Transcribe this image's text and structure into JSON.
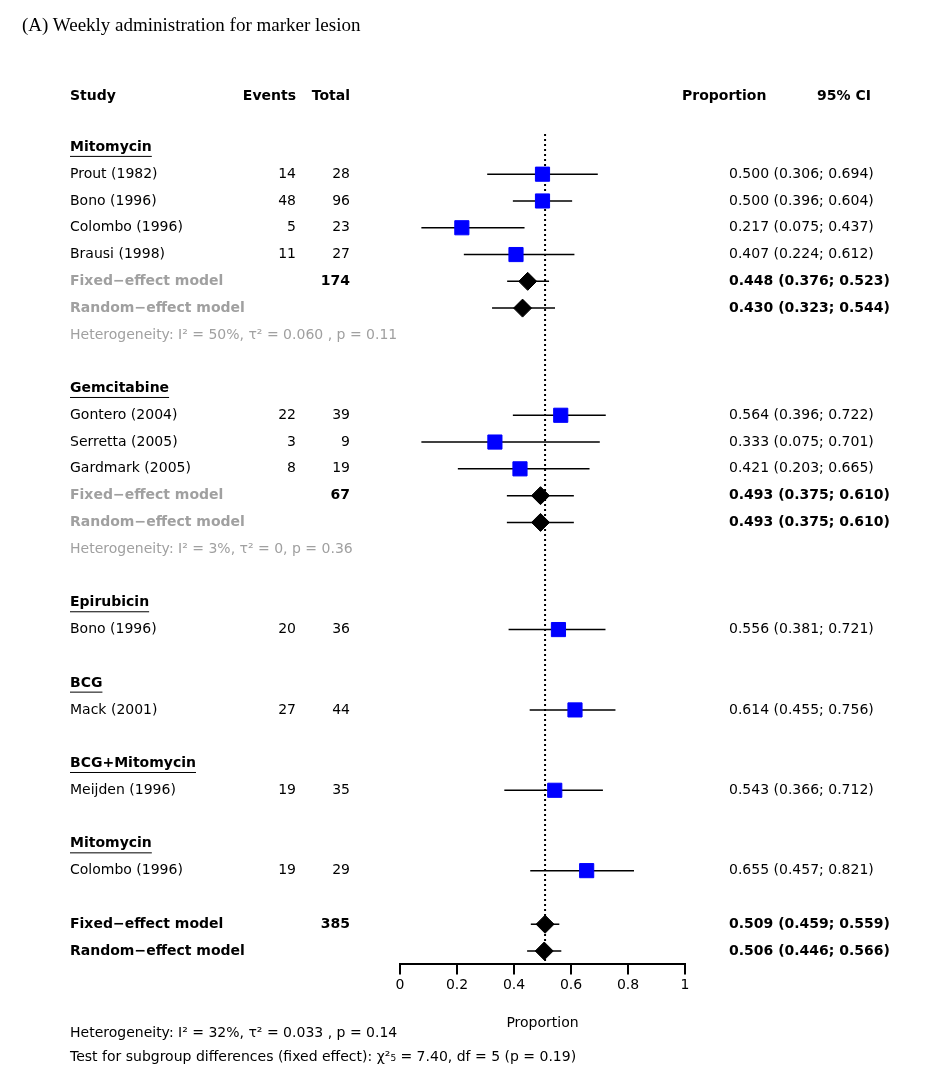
{
  "chart_data": {
    "type": "scatter",
    "orientation": "horizontal",
    "title": "(A) Weekly administration for marker lesion",
    "xlabel": "Proportion",
    "categories": [
      "Mitomycin",
      "Prout (1982)",
      "Bono (1996)",
      "Colombo (1996)",
      "Brausi (1998)",
      "Fixed−effect model",
      "Random−effect model",
      "Heterogeneity: I² = 50%, τ² = 0.060 , p = 0.11",
      null,
      "Gemcitabine",
      "Gontero (2004)",
      "Serretta (2005)",
      "Gardmark (2005)",
      "Fixed−effect model",
      "Random−effect model",
      "Heterogeneity: I² = 3%, τ² = 0, p = 0.36",
      null,
      "Epirubicin",
      "Bono (1996)",
      null,
      "BCG",
      "Mack (2001)",
      null,
      "BCG+Mitomycin",
      "Meijden (1996)",
      null,
      "Mitomycin",
      "Colombo (1996)",
      null,
      "Fixed−effect model",
      "Random−effect model"
    ],
    "series": [
      {
        "color": "#0000ff",
        "marker": "square",
        "values": [
          null,
          0.5,
          0.5,
          0.217,
          0.407,
          null,
          null,
          null,
          null,
          null,
          0.564,
          0.333,
          0.421,
          null,
          null,
          null,
          null,
          null,
          0.556,
          null,
          null,
          0.614,
          null,
          null,
          0.543,
          null,
          null,
          0.655,
          null,
          null,
          null
        ],
        "errors": [
          null,
          [
            0.306,
            0.694
          ],
          [
            0.396,
            0.604
          ],
          [
            0.075,
            0.437
          ],
          [
            0.224,
            0.612
          ],
          null,
          null,
          null,
          null,
          null,
          [
            0.396,
            0.722
          ],
          [
            0.075,
            0.701
          ],
          [
            0.203,
            0.665
          ],
          null,
          null,
          null,
          null,
          null,
          [
            0.381,
            0.721
          ],
          null,
          null,
          [
            0.455,
            0.756
          ],
          null,
          null,
          [
            0.366,
            0.712
          ],
          null,
          null,
          [
            0.457,
            0.821
          ],
          null,
          null,
          null
        ],
        "value_labels": [
          null,
          "0.500 (0.306; 0.694)",
          "0.500 (0.396; 0.604)",
          "0.217 (0.075; 0.437)",
          "0.407 (0.224; 0.612)",
          null,
          null,
          null,
          null,
          null,
          "0.564 (0.396; 0.722)",
          "0.333 (0.075; 0.701)",
          "0.421 (0.203; 0.665)",
          null,
          null,
          null,
          null,
          null,
          "0.556 (0.381; 0.721)",
          null,
          null,
          "0.614 (0.455; 0.756)",
          null,
          null,
          "0.543 (0.366; 0.712)",
          null,
          null,
          "0.655 (0.457; 0.821)",
          null,
          null,
          null
        ]
      },
      {
        "color": "#000000",
        "marker": "diamond",
        "values": [
          null,
          null,
          null,
          null,
          null,
          0.448,
          0.43,
          null,
          null,
          null,
          null,
          null,
          null,
          0.493,
          0.493,
          null,
          null,
          null,
          null,
          null,
          null,
          null,
          null,
          null,
          null,
          null,
          null,
          null,
          null,
          0.509,
          0.506
        ],
        "errors": [
          null,
          null,
          null,
          null,
          null,
          [
            0.376,
            0.523
          ],
          [
            0.323,
            0.544
          ],
          null,
          null,
          null,
          null,
          null,
          null,
          [
            0.375,
            0.61
          ],
          [
            0.375,
            0.61
          ],
          null,
          null,
          null,
          null,
          null,
          null,
          null,
          null,
          null,
          null,
          null,
          null,
          null,
          null,
          [
            0.459,
            0.559
          ],
          [
            0.446,
            0.566
          ]
        ],
        "value_labels": [
          null,
          null,
          null,
          null,
          null,
          "0.448 (0.376; 0.523)",
          "0.430 (0.323; 0.544)",
          null,
          null,
          null,
          null,
          null,
          null,
          "0.493 (0.375; 0.610)",
          "0.493 (0.375; 0.610)",
          null,
          null,
          null,
          null,
          null,
          null,
          null,
          null,
          null,
          null,
          null,
          null,
          null,
          null,
          "0.509 (0.459; 0.559)",
          "0.506 (0.446; 0.566)"
        ]
      }
    ],
    "xlim": [
      0,
      1
    ],
    "xticks": [
      0,
      0.2,
      0.4,
      0.6,
      0.8,
      1
    ],
    "grid": false,
    "legend": false,
    "ref_lines": [
      {
        "axis": "x",
        "value": 0.509,
        "line_style": "dotted",
        "color": "#000000"
      }
    ],
    "annotations": [
      "Study",
      "Events",
      "Total",
      "Proportion",
      "95% CI",
      "Heterogeneity: I² = 32%, τ² = 0.033 , p = 0.14",
      "Test for subgroup differences (fixed effect): χ²₅ = 7.40, df = 5 (p = 0.19)",
      "14",
      "28",
      "48",
      "96",
      "5",
      "23",
      "11",
      "27",
      "174",
      "22",
      "39",
      "3",
      "9",
      "8",
      "19",
      "67",
      "20",
      "36",
      "27",
      "44",
      "19",
      "35",
      "19",
      "29",
      "385"
    ]
  }
}
